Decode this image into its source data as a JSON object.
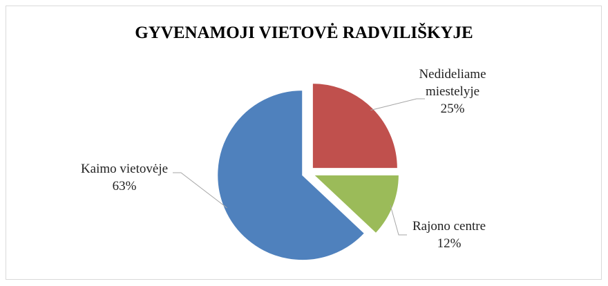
{
  "chart_data": {
    "type": "pie",
    "title": "GYVENAMOJI VIETOVĖ RADVILIŠKYJE",
    "categories": [
      "Nedideliame miestelyje",
      "Rajono centre",
      "Kaimo vietovėje"
    ],
    "values": [
      25,
      12,
      63
    ],
    "value_labels": [
      "25%",
      "12%",
      "63%"
    ],
    "colors": [
      "#c0504d",
      "#9bbb59",
      "#4f81bd"
    ]
  }
}
